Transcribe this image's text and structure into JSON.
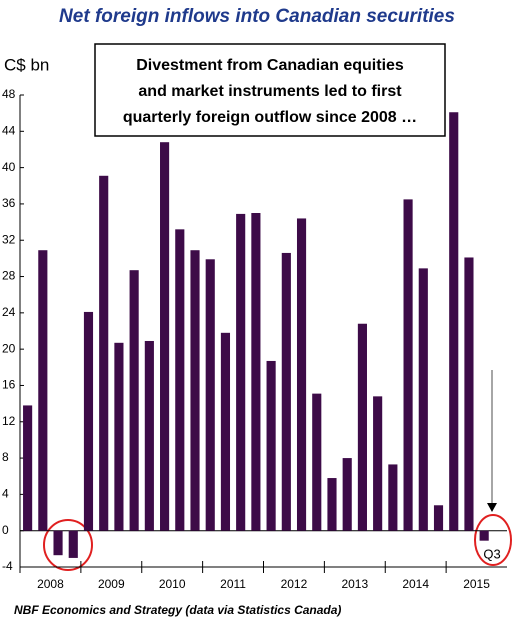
{
  "chart_data": {
    "type": "bar",
    "title": "Net foreign inflows into Canadian securities",
    "y_label": "C$ bn",
    "annotation": [
      "Divestment from Canadian equities",
      "and market instruments led to first",
      "quarterly foreign outflow since 2008 …"
    ],
    "last_label": "Q3",
    "source": "NBF Economics and Strategy (data via Statistics Canada)",
    "years": [
      "2008",
      "2009",
      "2010",
      "2011",
      "2012",
      "2013",
      "2014",
      "2015"
    ],
    "categories": [
      null,
      null,
      null,
      null,
      null,
      null,
      null,
      null,
      null,
      null,
      null,
      null,
      null,
      null,
      null,
      null,
      null,
      null,
      null,
      null,
      null,
      null,
      null,
      null,
      null,
      null,
      null,
      null,
      null,
      null,
      null
    ],
    "values": [
      13.8,
      30.9,
      -2.7,
      -3.0,
      24.1,
      39.1,
      20.7,
      28.7,
      20.9,
      42.8,
      33.2,
      30.9,
      29.9,
      21.8,
      34.9,
      35.0,
      18.7,
      30.6,
      34.4,
      15.1,
      5.8,
      8.0,
      22.8,
      14.8,
      7.3,
      36.5,
      28.9,
      2.8,
      46.1,
      30.1,
      -1.1
    ],
    "color": "#3d0b48",
    "ylim": [
      -4,
      48
    ],
    "yticks": [
      -4,
      0,
      4,
      8,
      12,
      16,
      20,
      24,
      28,
      32,
      36,
      40,
      44,
      48
    ]
  }
}
